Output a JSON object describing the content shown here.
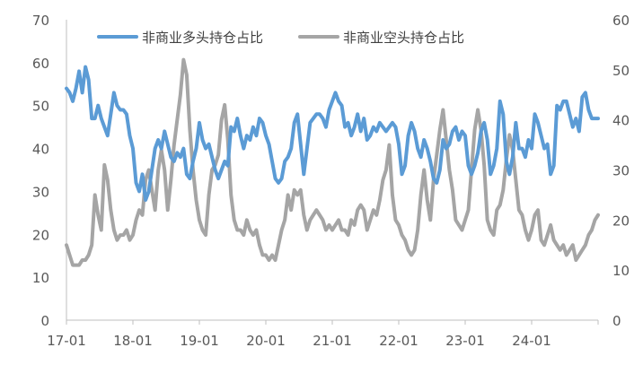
{
  "chart_data": {
    "type": "line",
    "x_start": "2017-01",
    "x_end": "2024-12",
    "x_ticks": [
      "17-01",
      "18-01",
      "19-01",
      "20-01",
      "21-01",
      "22-01",
      "23-01",
      "24-01"
    ],
    "y_left": {
      "min": 0,
      "max": 70,
      "step": 10,
      "ticks": [
        "0",
        "10",
        "20",
        "30",
        "40",
        "50",
        "60",
        "70"
      ]
    },
    "y_right": {
      "min": 0,
      "max": 60,
      "step": 10,
      "ticks": [
        "0",
        "10",
        "20",
        "30",
        "40",
        "50",
        "60"
      ]
    },
    "grid": false,
    "legend_position": "top",
    "series": [
      {
        "name": "非商业多头持仓占比",
        "axis": "left",
        "color": "#5B9BD5",
        "values": [
          54,
          53,
          51,
          54,
          58,
          53,
          59,
          56,
          47,
          47,
          50,
          47,
          45,
          43,
          48,
          53,
          50,
          49,
          49,
          48,
          43,
          40,
          32,
          30,
          34,
          28,
          30,
          35,
          40,
          42,
          40,
          44,
          41,
          38,
          37,
          39,
          38,
          40,
          34,
          33,
          37,
          40,
          46,
          42,
          40,
          41,
          38,
          35,
          33,
          35,
          37,
          36,
          45,
          44,
          47,
          43,
          40,
          43,
          42,
          45,
          43,
          47,
          46,
          43,
          41,
          37,
          33,
          32,
          33,
          37,
          38,
          40,
          46,
          48,
          41,
          34,
          40,
          46,
          47,
          48,
          48,
          47,
          45,
          49,
          51,
          53,
          51,
          50,
          45,
          46,
          43,
          45,
          48,
          44,
          47,
          42,
          43,
          45,
          44,
          46,
          45,
          44,
          45,
          46,
          45,
          41,
          34,
          36,
          43,
          46,
          44,
          40,
          38,
          42,
          40,
          37,
          33,
          32,
          35,
          42,
          40,
          41,
          44,
          45,
          42,
          44,
          43,
          36,
          34,
          36,
          39,
          44,
          46,
          42,
          34,
          36,
          40,
          51,
          48,
          37,
          34,
          38,
          46,
          40,
          40,
          38,
          42,
          40,
          48,
          46,
          43,
          40,
          41,
          34,
          36,
          50,
          49,
          51,
          51,
          48,
          45,
          47,
          44,
          52,
          53,
          49,
          47,
          47,
          47
        ]
      },
      {
        "name": "非商业空头持仓占比",
        "axis": "right",
        "color": "#A5A5A5",
        "values": [
          15,
          13,
          11,
          11,
          11,
          12,
          12,
          13,
          15,
          25,
          21,
          18,
          31,
          28,
          22,
          18,
          16,
          17,
          17,
          18,
          16,
          17,
          20,
          22,
          21,
          28,
          30,
          26,
          22,
          30,
          34,
          30,
          22,
          28,
          35,
          40,
          45,
          52,
          49,
          38,
          30,
          24,
          20,
          18,
          17,
          25,
          30,
          31,
          33,
          40,
          43,
          36,
          25,
          20,
          18,
          18,
          17,
          20,
          18,
          17,
          18,
          15,
          13,
          13,
          12,
          13,
          12,
          15,
          18,
          20,
          25,
          22,
          26,
          25,
          26,
          21,
          18,
          20,
          21,
          22,
          21,
          20,
          18,
          19,
          18,
          19,
          20,
          18,
          18,
          17,
          20,
          19,
          22,
          23,
          22,
          18,
          20,
          22,
          21,
          24,
          28,
          30,
          35,
          25,
          20,
          19,
          17,
          16,
          14,
          13,
          14,
          18,
          25,
          30,
          24,
          20,
          28,
          33,
          38,
          42,
          36,
          30,
          26,
          20,
          19,
          18,
          20,
          22,
          30,
          38,
          42,
          38,
          31,
          20,
          18,
          17,
          22,
          23,
          26,
          32,
          37,
          34,
          28,
          22,
          21,
          18,
          16,
          18,
          21,
          22,
          16,
          15,
          17,
          19,
          16,
          15,
          14,
          15,
          13,
          14,
          15,
          12,
          13,
          14,
          15,
          17,
          18,
          20,
          21
        ]
      }
    ]
  }
}
